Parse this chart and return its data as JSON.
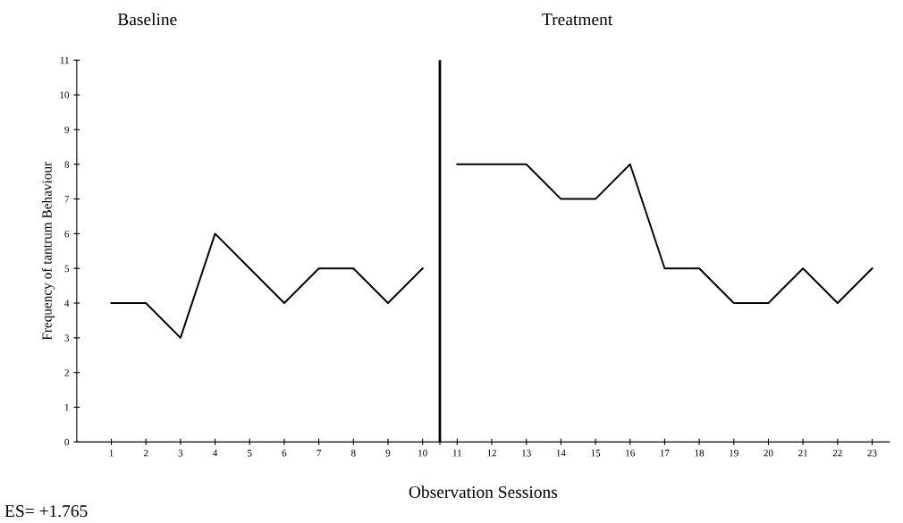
{
  "chart_data": {
    "type": "line",
    "xlabel": "Observation Sessions",
    "ylabel": "Frequency of tantrum Behaviour",
    "annotations": [
      "Baseline",
      "Treatment",
      "ES= +1.765"
    ],
    "series": [
      {
        "color": "#000000",
        "x": [
          1,
          2,
          3,
          4,
          5,
          6,
          7,
          8,
          9,
          10
        ],
        "values": [
          4,
          4,
          3,
          6,
          5,
          4,
          5,
          5,
          4,
          5
        ]
      },
      {
        "color": "#000000",
        "x": [
          11,
          12,
          13,
          14,
          15,
          16,
          17,
          18,
          19,
          20,
          21,
          22,
          23
        ],
        "values": [
          8,
          8,
          8,
          7,
          7,
          8,
          5,
          5,
          4,
          4,
          5,
          4,
          5
        ]
      }
    ],
    "xlim": [
      0,
      23.5
    ],
    "xticks": [
      1,
      2,
      3,
      4,
      5,
      6,
      7,
      8,
      9,
      10,
      {
        "value": 10.5,
        "label": null
      },
      11,
      12,
      13,
      14,
      15,
      16,
      17,
      18,
      19,
      20,
      21,
      22,
      23
    ],
    "ylim": [
      0,
      11
    ],
    "yticks": [
      0,
      1,
      2,
      3,
      4,
      5,
      6,
      7,
      8,
      9,
      10,
      11
    ],
    "ref_lines": [
      {
        "axis": "x",
        "value": 10.5,
        "label": null,
        "color": "#000000",
        "line_style": "solid"
      }
    ],
    "grid": false,
    "legend": false,
    "marker": "none",
    "line_style": "solid"
  }
}
